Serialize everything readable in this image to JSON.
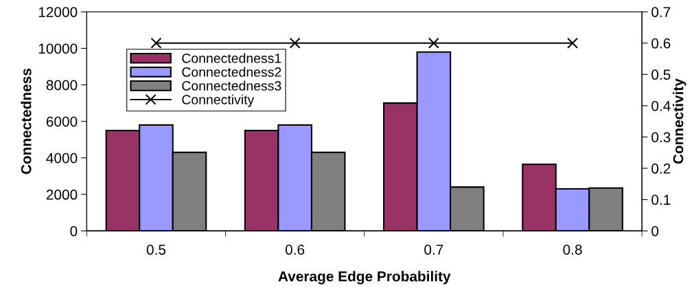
{
  "chart_data": {
    "type": "bar",
    "xlabel": "Average Edge Probability",
    "ylabel": "Connectedness",
    "y2label": "Connectivity",
    "categories": [
      "0.5",
      "0.6",
      "0.7",
      "0.8"
    ],
    "series": [
      {
        "name": "Connectedness1",
        "color": "#993366",
        "values": [
          5500,
          5500,
          7000,
          3650
        ]
      },
      {
        "name": "Connectedness2",
        "color": "#9999ff",
        "values": [
          5800,
          5800,
          9800,
          2300
        ]
      },
      {
        "name": "Connectedness3",
        "color": "#808080",
        "values": [
          4300,
          4300,
          2400,
          2350
        ]
      },
      {
        "name": "Connectivity",
        "type": "line",
        "axis": "y2",
        "color": "#000000",
        "marker": "cross",
        "values": [
          0.6,
          0.6,
          0.6,
          0.6
        ]
      }
    ],
    "ylim": [
      0,
      12000
    ],
    "yticks": [
      0,
      2000,
      4000,
      6000,
      8000,
      10000,
      12000
    ],
    "y2lim": [
      0,
      0.7
    ],
    "y2ticks": [
      0,
      0.1,
      0.2,
      0.3,
      0.4,
      0.5,
      0.6,
      0.7
    ],
    "grid": false,
    "legend": "top left"
  }
}
